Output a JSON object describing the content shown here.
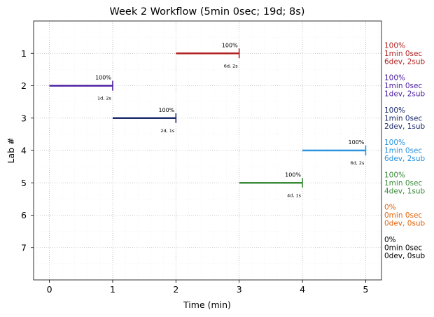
{
  "chart_data": {
    "type": "gantt",
    "title": "Week 2 Workflow (5min 0sec; 19d; 8s)",
    "xlabel": "Time (min)",
    "ylabel": "Lab #",
    "xlim": [
      -0.25,
      5.25
    ],
    "ylim": [
      0,
      8
    ],
    "xticks": [
      "0",
      "1",
      "2",
      "3",
      "4",
      "5"
    ],
    "yticks": [
      "1",
      "2",
      "3",
      "4",
      "5",
      "6",
      "7"
    ],
    "grid": true,
    "bars": [
      {
        "lab": 1,
        "start": 2,
        "end": 3,
        "percent": "100%",
        "sub": "6d, 2s",
        "color": "#b22222"
      },
      {
        "lab": 2,
        "start": 0,
        "end": 1,
        "percent": "100%",
        "sub": "1d, 2s",
        "color": "#4b1fa0"
      },
      {
        "lab": 3,
        "start": 1,
        "end": 2,
        "percent": "100%",
        "sub": "2d, 1s",
        "color": "#1c2b6e"
      },
      {
        "lab": 4,
        "start": 4,
        "end": 5,
        "percent": "100%",
        "sub": "6d, 2s",
        "color": "#2b93e0"
      },
      {
        "lab": 5,
        "start": 3,
        "end": 4,
        "percent": "100%",
        "sub": "4d, 1s",
        "color": "#3c8a3c"
      }
    ],
    "side_labels": [
      {
        "lab": 1,
        "lines": [
          "100%",
          "1min 0sec",
          "6dev, 2sub"
        ],
        "color": "#b22222"
      },
      {
        "lab": 2,
        "lines": [
          "100%",
          "1min 0sec",
          "1dev, 2sub"
        ],
        "color": "#4b1fa0"
      },
      {
        "lab": 3,
        "lines": [
          "100%",
          "1min 0sec",
          "2dev, 1sub"
        ],
        "color": "#1c2b6e"
      },
      {
        "lab": 4,
        "lines": [
          "100%",
          "1min 0sec",
          "6dev, 2sub"
        ],
        "color": "#2b93e0"
      },
      {
        "lab": 5,
        "lines": [
          "100%",
          "1min 0sec",
          "4dev, 1sub"
        ],
        "color": "#3c8a3c"
      },
      {
        "lab": 6,
        "lines": [
          "0%",
          "0min 0sec",
          "0dev, 0sub"
        ],
        "color": "#e0630a"
      },
      {
        "lab": 7,
        "lines": [
          "0%",
          "0min 0sec",
          "0dev, 0sub"
        ],
        "color": "#000000"
      }
    ]
  }
}
